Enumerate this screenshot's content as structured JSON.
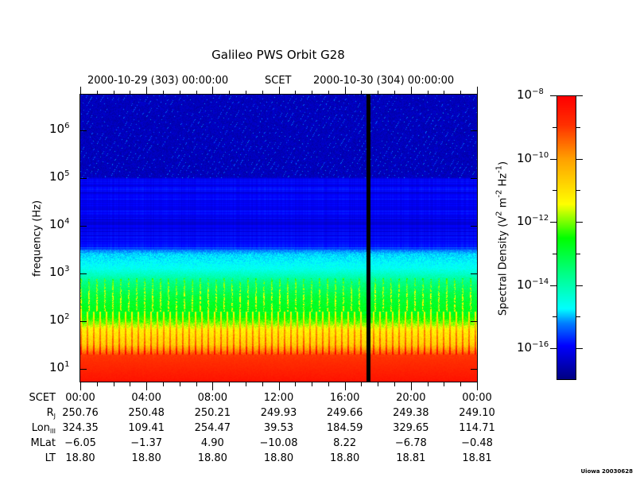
{
  "chart_data": {
    "type": "heatmap",
    "title": "Galileo PWS Orbit G28",
    "top_axis": {
      "label_left": "2000-10-29 (303) 00:00:00",
      "label_center": "SCET",
      "label_right": "2000-10-30 (304) 00:00:00"
    },
    "xlabel": "SCET",
    "x_range_hours": [
      0,
      24
    ],
    "x_major_step_hours": 4,
    "x_minor_step_hours": 1,
    "ylabel": "frequency (Hz)",
    "y_scale": "log",
    "y_range_log10": [
      0.73,
      6.75
    ],
    "y_ticks": [
      {
        "base": "10",
        "exp": "6",
        "v": 6
      },
      {
        "base": "10",
        "exp": "5",
        "v": 5
      },
      {
        "base": "10",
        "exp": "4",
        "v": 4
      },
      {
        "base": "10",
        "exp": "3",
        "v": 3
      },
      {
        "base": "10",
        "exp": "2",
        "v": 2
      },
      {
        "base": "10",
        "exp": "1",
        "v": 1
      }
    ],
    "colorbar": {
      "label": "Spectral Density (V",
      "label_parts": [
        "Spectral Density (V",
        "2",
        " m",
        "-2",
        " Hz",
        "-1",
        ")"
      ],
      "range_log10": [
        -17,
        -8
      ],
      "ticks": [
        {
          "base": "10",
          "exp": "−8",
          "v": -8
        },
        {
          "base": "10",
          "exp": "−10",
          "v": -10
        },
        {
          "base": "10",
          "exp": "−12",
          "v": -12
        },
        {
          "base": "10",
          "exp": "−14",
          "v": -14
        },
        {
          "base": "10",
          "exp": "−16",
          "v": -16
        }
      ],
      "colormap": [
        [
          0,
          "#000080"
        ],
        [
          0.12,
          "#0000ff"
        ],
        [
          0.2,
          "#0080ff"
        ],
        [
          0.25,
          "#00ffff"
        ],
        [
          0.38,
          "#00ff80"
        ],
        [
          0.5,
          "#00ff00"
        ],
        [
          0.62,
          "#ffff00"
        ],
        [
          0.78,
          "#ffa000"
        ],
        [
          0.9,
          "#ff3000"
        ],
        [
          1,
          "#ff0000"
        ]
      ]
    },
    "spectral_profile_log10": [
      [
        6.75,
        -16.5
      ],
      [
        5.01,
        -16.5
      ],
      [
        5.0,
        -16.0
      ],
      [
        4.3,
        -16.0
      ],
      [
        4.0,
        -16.1
      ],
      [
        3.6,
        -15.9
      ],
      [
        3.5,
        -15.3
      ],
      [
        3.4,
        -14.9
      ],
      [
        3.1,
        -14.6
      ],
      [
        2.8,
        -13.6
      ],
      [
        2.5,
        -13.0
      ],
      [
        2.2,
        -12.7
      ],
      [
        2.0,
        -12.0
      ],
      [
        1.8,
        -11.0
      ],
      [
        1.5,
        -10.5
      ],
      [
        1.3,
        -9.0
      ],
      [
        0.7,
        -8.3
      ]
    ],
    "data_gap_hour": 17.4
  },
  "ephemeris": {
    "rows": [
      {
        "label": "SCET",
        "sub": "",
        "values": [
          "00:00",
          "04:00",
          "08:00",
          "12:00",
          "16:00",
          "20:00",
          "00:00"
        ]
      },
      {
        "label": "R",
        "sub": "J",
        "values": [
          "250.76",
          "250.48",
          "250.21",
          "249.93",
          "249.66",
          "249.38",
          "249.10"
        ]
      },
      {
        "label": "Lon",
        "sub": "III",
        "values": [
          "324.35",
          "109.41",
          "254.47",
          "39.53",
          "184.59",
          "329.65",
          "114.71"
        ]
      },
      {
        "label": "MLat",
        "sub": "",
        "values": [
          "−6.05",
          "−1.37",
          "4.90",
          "−10.08",
          "8.22",
          "−6.78",
          "−0.48"
        ]
      },
      {
        "label": "LT",
        "sub": "",
        "values": [
          "18.80",
          "18.80",
          "18.80",
          "18.80",
          "18.80",
          "18.81",
          "18.81"
        ]
      }
    ]
  },
  "stamp": "Uiowa 20030628"
}
